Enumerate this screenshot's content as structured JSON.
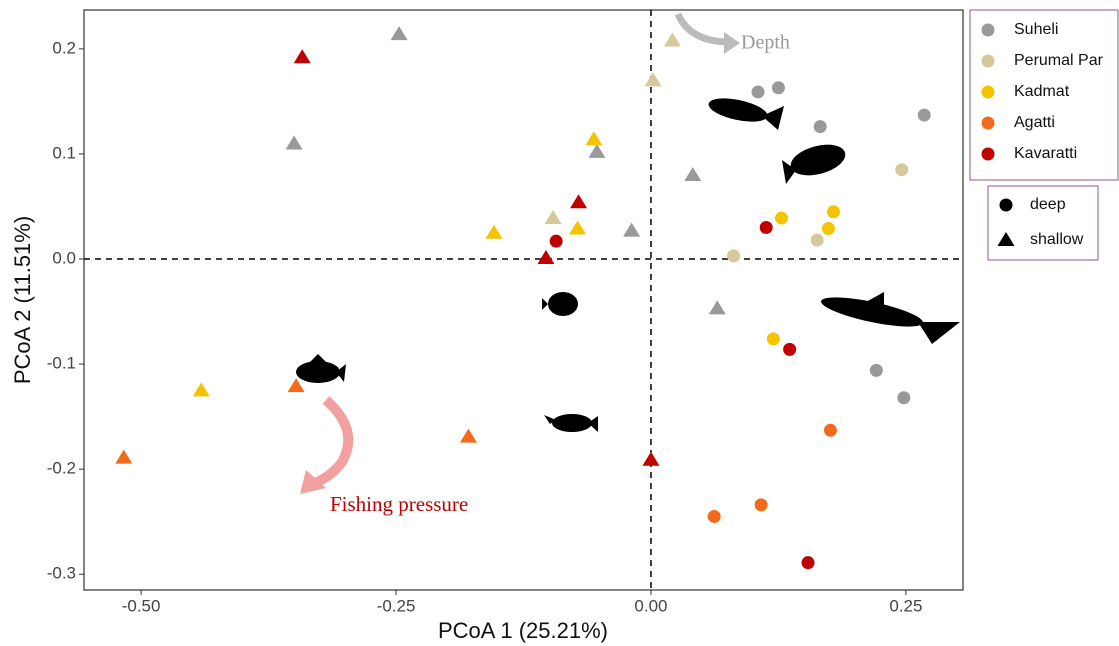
{
  "chart_data": {
    "type": "scatter",
    "x_label": "PCoA 1 (25.21%)",
    "y_label": "PCoA 2 (11.51%)",
    "xlim": [
      -0.556,
      0.306
    ],
    "ylim": [
      -0.315,
      0.237
    ],
    "xticks": [
      {
        "value": -0.5,
        "label": "-0.50"
      },
      -0.25,
      {
        "value": 0,
        "label": "0.00"
      },
      0.25
    ],
    "yticks": [
      -0.3,
      -0.2,
      -0.1,
      {
        "value": 0,
        "label": "0.0"
      },
      0.1,
      0.2
    ],
    "ref_lines": {
      "x": 0,
      "y": 0
    },
    "shapes": [
      "deep",
      "shallow"
    ],
    "annotations": [
      "Depth",
      "Fishing pressure"
    ],
    "series": [
      {
        "name": "Suheli",
        "color": "#999999",
        "deep": {
          "x": [
            0.105,
            0.125,
            0.166,
            0.268,
            0.221,
            0.248
          ],
          "y": [
            0.159,
            0.163,
            0.126,
            0.137,
            -0.106,
            -0.132
          ]
        },
        "shallow": {
          "x": [
            -0.247,
            -0.35,
            -0.053,
            0.041,
            -0.019,
            0.065
          ],
          "y": [
            0.214,
            0.11,
            0.102,
            0.08,
            0.027,
            -0.047
          ]
        }
      },
      {
        "name": "Perumal Par",
        "color": "#d4c99a",
        "deep": {
          "x": [
            0.246,
            0.081,
            0.163
          ],
          "y": [
            0.085,
            0.003,
            0.018
          ]
        },
        "shallow": {
          "x": [
            0.021,
            0.002,
            -0.096
          ],
          "y": [
            0.208,
            0.17,
            0.039
          ]
        }
      },
      {
        "name": "Kadmat",
        "color": "#f5c400",
        "deep": {
          "x": [
            0.128,
            0.179,
            0.174,
            0.12
          ],
          "y": [
            0.039,
            0.045,
            0.029,
            -0.076
          ]
        },
        "shallow": {
          "x": [
            -0.056,
            -0.154,
            -0.072,
            -0.441
          ],
          "y": [
            0.114,
            0.025,
            0.029,
            -0.125
          ]
        }
      },
      {
        "name": "Agatti",
        "color": "#f26b1d",
        "deep": {
          "x": [
            0.176,
            0.062,
            0.108
          ],
          "y": [
            -0.163,
            -0.245,
            -0.234
          ]
        },
        "shallow": {
          "x": [
            -0.517,
            -0.348,
            -0.179
          ],
          "y": [
            -0.189,
            -0.121,
            -0.169
          ]
        }
      },
      {
        "name": "Kavaratti",
        "color": "#c00000",
        "deep": {
          "x": [
            -0.093,
            0.113,
            0.136,
            0.154
          ],
          "y": [
            0.017,
            0.03,
            -0.086,
            -0.289
          ]
        },
        "shallow": {
          "x": [
            -0.342,
            -0.071,
            -0.103,
            0.0
          ],
          "y": [
            0.192,
            0.054,
            0.001,
            -0.191
          ]
        }
      }
    ]
  }
}
